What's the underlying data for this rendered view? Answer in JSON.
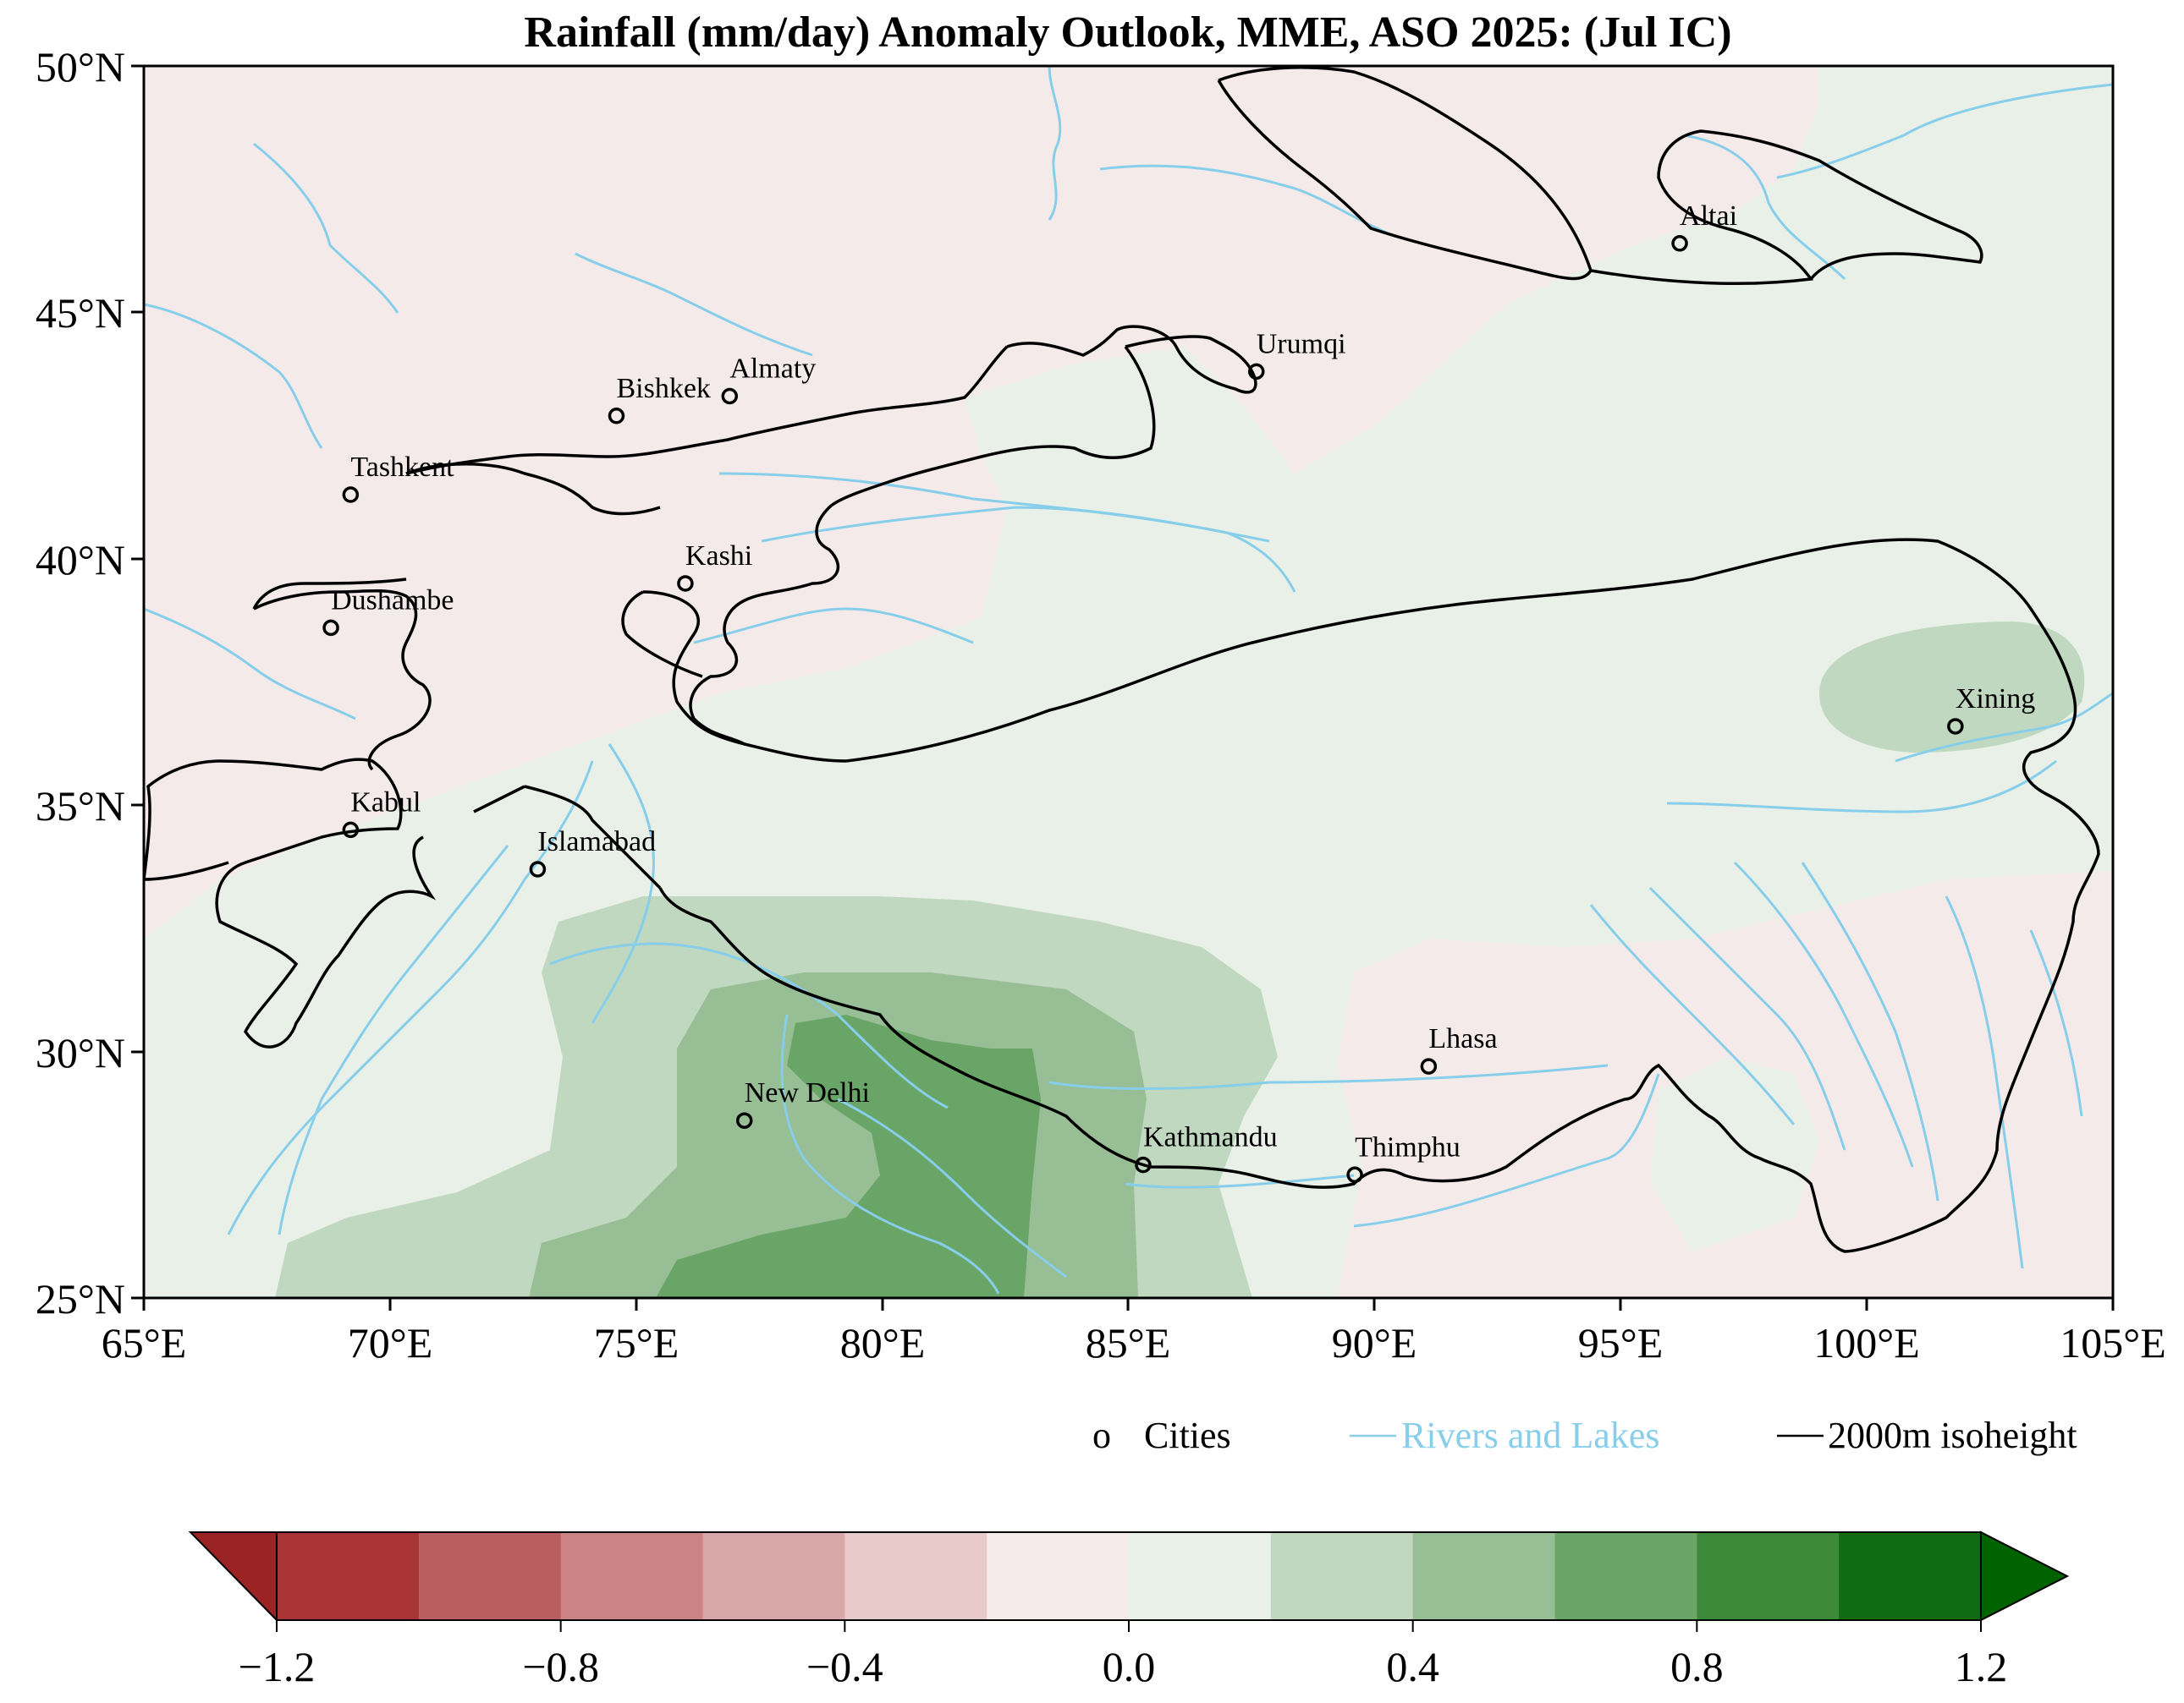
{
  "title": "Rainfall (mm/day) Anomaly Outlook, MME, ASO  2025:  (Jul IC)",
  "map": {
    "projection": "PlateCarree",
    "lon_range": [
      65,
      105
    ],
    "lat_range": [
      25,
      50
    ],
    "lon_ticks": [
      "65°E",
      "70°E",
      "75°E",
      "80°E",
      "85°E",
      "90°E",
      "95°E",
      "100°E",
      "105°E"
    ],
    "lat_ticks": [
      "50°N",
      "45°N",
      "40°N",
      "35°N",
      "30°N",
      "25°N"
    ],
    "cities": [
      {
        "name": "Altai",
        "lon": 96.2,
        "lat": 46.4
      },
      {
        "name": "Urumqi",
        "lon": 87.6,
        "lat": 43.8
      },
      {
        "name": "Almaty",
        "lon": 76.9,
        "lat": 43.3
      },
      {
        "name": "Bishkek",
        "lon": 74.6,
        "lat": 42.9
      },
      {
        "name": "Tashkent",
        "lon": 69.2,
        "lat": 41.3
      },
      {
        "name": "Kashi",
        "lon": 76.0,
        "lat": 39.5
      },
      {
        "name": "Dushambe",
        "lon": 68.8,
        "lat": 38.6
      },
      {
        "name": "Xining",
        "lon": 101.8,
        "lat": 36.6
      },
      {
        "name": "Kabul",
        "lon": 69.2,
        "lat": 34.5
      },
      {
        "name": "Islamabad",
        "lon": 73.0,
        "lat": 33.7
      },
      {
        "name": "Lhasa",
        "lon": 91.1,
        "lat": 29.7
      },
      {
        "name": "New Delhi",
        "lon": 77.2,
        "lat": 28.6
      },
      {
        "name": "Kathmandu",
        "lon": 85.3,
        "lat": 27.7
      },
      {
        "name": "Thimphu",
        "lon": 89.6,
        "lat": 27.5
      }
    ]
  },
  "legend": {
    "cities_marker": "o",
    "cities_label": "Cities",
    "rivers_label": "Rivers and Lakes",
    "isoheight_label": "2000m isoheight"
  },
  "colorbar": {
    "ticks": [
      "−1.2",
      "−0.8",
      "−0.4",
      "0.0",
      "0.4",
      "0.8",
      "1.2"
    ],
    "levels": [
      -1.2,
      -1.0,
      -0.8,
      -0.6,
      -0.4,
      -0.2,
      0.0,
      0.2,
      0.4,
      0.6,
      0.8,
      1.0,
      1.2
    ],
    "colors": [
      "#a83434",
      "#ba5f5f",
      "#cb8383",
      "#d9a7a7",
      "#e8c9c9",
      "#f5eaea",
      "#e9f0e7",
      "#c0d8bf",
      "#97be94",
      "#69a566",
      "#3d8a3b",
      "#106c10"
    ],
    "under_color": "#9b2323",
    "over_color": "#006300"
  },
  "colors": {
    "river": "#87ceeb",
    "isoheight": "#000000",
    "frame": "#000000"
  }
}
